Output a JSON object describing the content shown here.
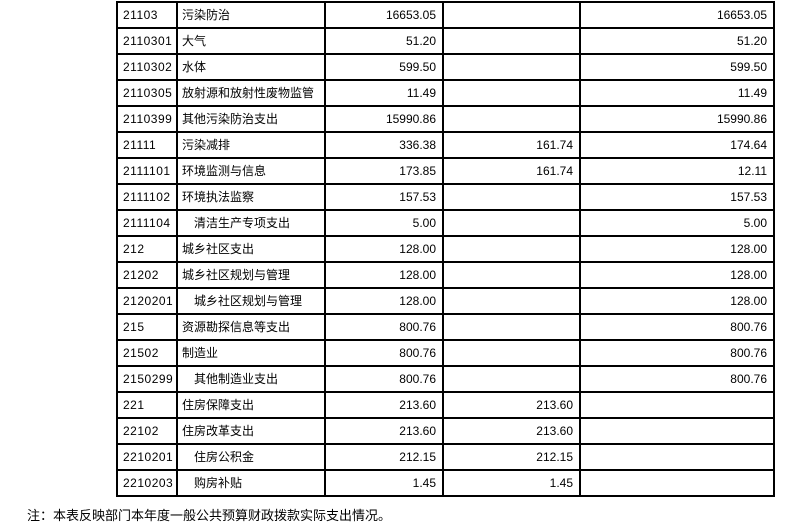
{
  "note": "注：本表反映部门本年度一般公共预算财政拨款实际支出情况。",
  "table": {
    "rows": [
      {
        "code": "21103",
        "name": "污染防治",
        "indent": false,
        "amount1": "16653.05",
        "amount2": "",
        "amount3": "16653.05"
      },
      {
        "code": "2110301",
        "name": "大气",
        "indent": false,
        "amount1": "51.20",
        "amount2": "",
        "amount3": "51.20"
      },
      {
        "code": "2110302",
        "name": "水体",
        "indent": false,
        "amount1": "599.50",
        "amount2": "",
        "amount3": "599.50"
      },
      {
        "code": "2110305",
        "name": "放射源和放射性废物监管",
        "indent": false,
        "amount1": "11.49",
        "amount2": "",
        "amount3": "11.49"
      },
      {
        "code": "2110399",
        "name": "其他污染防治支出",
        "indent": false,
        "amount1": "15990.86",
        "amount2": "",
        "amount3": "15990.86"
      },
      {
        "code": "21111",
        "name": "污染减排",
        "indent": false,
        "amount1": "336.38",
        "amount2": "161.74",
        "amount3": "174.64"
      },
      {
        "code": "2111101",
        "name": "环境监测与信息",
        "indent": false,
        "amount1": "173.85",
        "amount2": "161.74",
        "amount3": "12.11"
      },
      {
        "code": "2111102",
        "name": "环境执法监察",
        "indent": false,
        "amount1": "157.53",
        "amount2": "",
        "amount3": "157.53"
      },
      {
        "code": "2111104",
        "name": "清洁生产专项支出",
        "indent": true,
        "amount1": "5.00",
        "amount2": "",
        "amount3": "5.00"
      },
      {
        "code": "212",
        "name": "城乡社区支出",
        "indent": false,
        "amount1": "128.00",
        "amount2": "",
        "amount3": "128.00"
      },
      {
        "code": "21202",
        "name": "城乡社区规划与管理",
        "indent": false,
        "amount1": "128.00",
        "amount2": "",
        "amount3": "128.00"
      },
      {
        "code": "2120201",
        "name": "城乡社区规划与管理",
        "indent": true,
        "amount1": "128.00",
        "amount2": "",
        "amount3": "128.00"
      },
      {
        "code": "215",
        "name": "资源勘探信息等支出",
        "indent": false,
        "amount1": "800.76",
        "amount2": "",
        "amount3": "800.76"
      },
      {
        "code": "21502",
        "name": "制造业",
        "indent": false,
        "amount1": "800.76",
        "amount2": "",
        "amount3": "800.76"
      },
      {
        "code": "2150299",
        "name": "其他制造业支出",
        "indent": true,
        "amount1": "800.76",
        "amount2": "",
        "amount3": "800.76"
      },
      {
        "code": "221",
        "name": "住房保障支出",
        "indent": false,
        "amount1": "213.60",
        "amount2": "213.60",
        "amount3": ""
      },
      {
        "code": "22102",
        "name": "住房改革支出",
        "indent": false,
        "amount1": "213.60",
        "amount2": "213.60",
        "amount3": ""
      },
      {
        "code": "2210201",
        "name": "住房公积金",
        "indent": true,
        "amount1": "212.15",
        "amount2": "212.15",
        "amount3": ""
      },
      {
        "code": "2210203",
        "name": "购房补贴",
        "indent": true,
        "amount1": "1.45",
        "amount2": "1.45",
        "amount3": ""
      }
    ]
  }
}
